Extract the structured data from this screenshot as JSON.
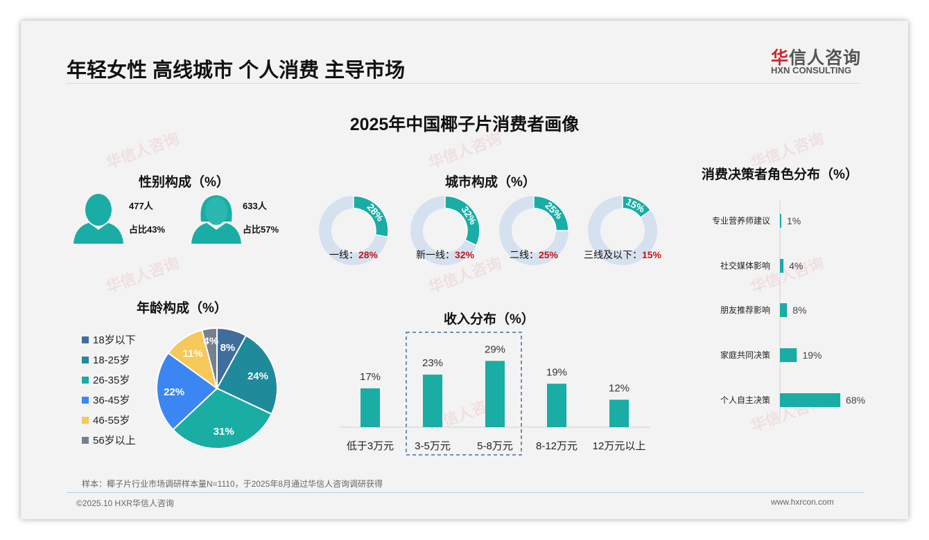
{
  "header": {
    "title": "年轻女性 高线城市 个人消费 主导市场",
    "logo_cn_red": "华",
    "logo_cn": "信人咨询",
    "logo_en": "HXN CONSULTING"
  },
  "main_title": "2025年中国椰子片消费者画像",
  "watermark": "华信人咨询",
  "gender": {
    "title": "性别构成（%）",
    "male": {
      "count": "477人",
      "share": "占比43%"
    },
    "female": {
      "count": "633人",
      "share": "占比57%"
    }
  },
  "city": {
    "title": "城市构成（%）",
    "items": [
      {
        "label": "一线：",
        "value": 28,
        "text": "28%"
      },
      {
        "label": "新一线：",
        "value": 32,
        "text": "32%"
      },
      {
        "label": "二线：",
        "value": 25,
        "text": "25%"
      },
      {
        "label": "三线及以下：",
        "value": 15,
        "text": "15%"
      }
    ]
  },
  "colors": {
    "teal": "#19ada5",
    "ring": "#d5e1ee",
    "red": "#c0141c"
  },
  "chart_data": [
    {
      "type": "pie",
      "title": "年龄构成（%）",
      "categories": [
        "18岁以下",
        "18-25岁",
        "26-35岁",
        "36-45岁",
        "46-55岁",
        "56岁以上"
      ],
      "values": [
        8,
        24,
        31,
        22,
        11,
        4
      ],
      "colors": [
        "#3f6d9e",
        "#1f8a9a",
        "#1aada3",
        "#3b86f2",
        "#f7c85a",
        "#76808e"
      ],
      "legend": "left"
    },
    {
      "type": "bar",
      "title": "收入分布（%）",
      "categories": [
        "低于3万元",
        "3-5万元",
        "5-8万元",
        "8-12万元",
        "12万元以上"
      ],
      "values": [
        17,
        23,
        29,
        19,
        12
      ],
      "highlight": [
        "3-5万元",
        "5-8万元"
      ]
    },
    {
      "type": "bar",
      "orientation": "horizontal",
      "title": "消费决策者角色分布（%）",
      "categories": [
        "专业营养师建议",
        "社交媒体影响",
        "朋友推荐影响",
        "家庭共同决策",
        "个人自主决策"
      ],
      "values": [
        1,
        4,
        8,
        19,
        68
      ]
    }
  ],
  "footer": {
    "sample": "样本：椰子片行业市场调研样本量N=1110，于2025年8月通过华信人咨询调研获得",
    "copyright": "©2025.10 HXR华信人咨询",
    "website": "www.hxrcon.com"
  }
}
